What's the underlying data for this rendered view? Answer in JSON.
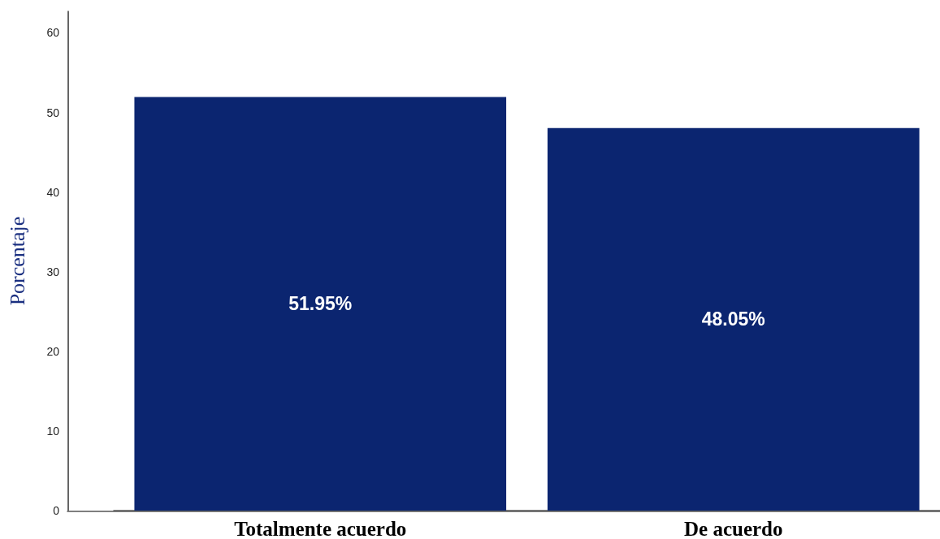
{
  "chart_data": {
    "type": "bar",
    "ylabel": "Porcentaje",
    "categories": [
      "Totalmente acuerdo",
      "De acuerdo"
    ],
    "values": [
      51.95,
      48.05
    ],
    "color": "#0b2570",
    "value_labels": [
      "51.95%",
      "48.05%"
    ],
    "ylim": [
      0,
      62.7
    ],
    "yticks": [
      0,
      10,
      20,
      30,
      40,
      50,
      60
    ],
    "grid": false
  }
}
